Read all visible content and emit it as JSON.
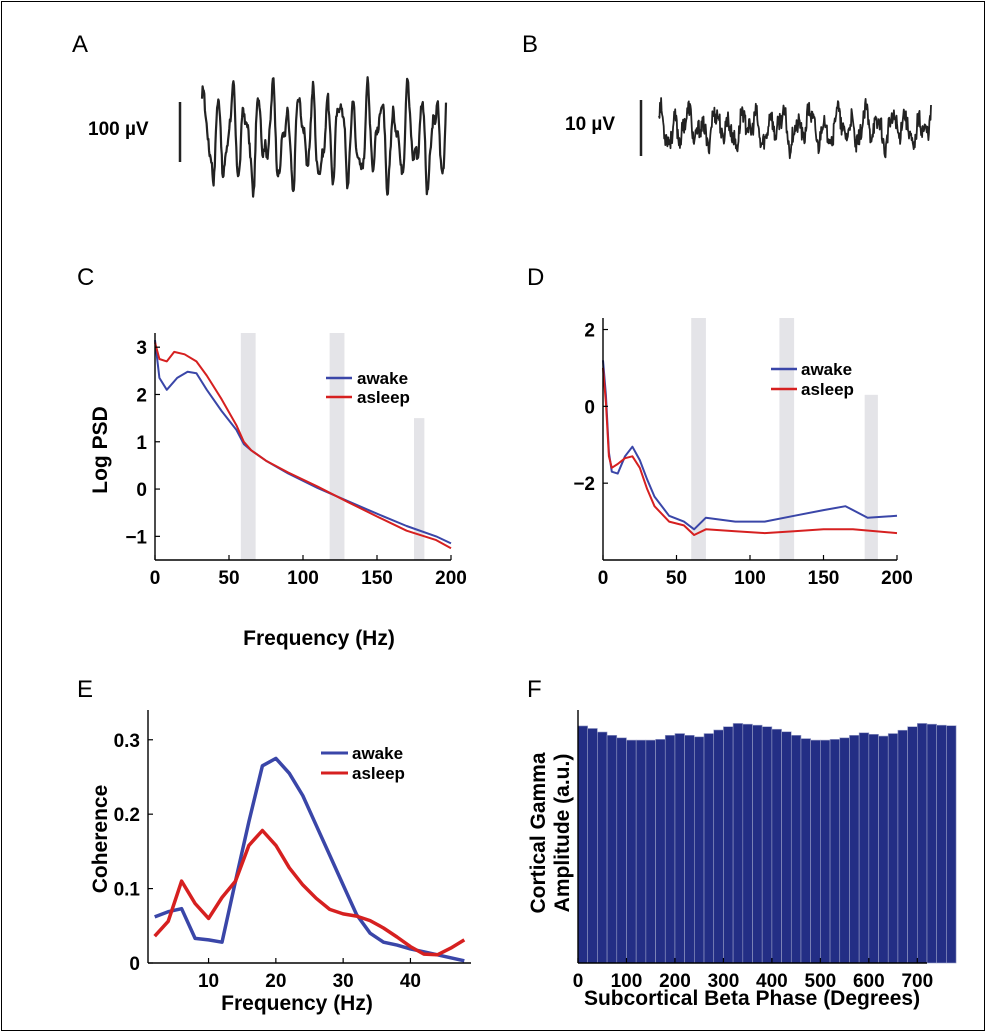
{
  "colors": {
    "awake": "#3a46a8",
    "asleep": "#d62020",
    "bar": "#232e85",
    "band": "#e4e4e8",
    "trace": "#222222"
  },
  "panels": {
    "A": {
      "letter": "A",
      "scale_label": "100 µV"
    },
    "B": {
      "letter": "B",
      "scale_label": "10 µV"
    },
    "C": {
      "letter": "C",
      "ylabel": "Log PSD",
      "xlabel": "Frequency (Hz)",
      "legend": [
        "awake",
        "asleep"
      ]
    },
    "D": {
      "letter": "D",
      "legend": [
        "awake",
        "asleep"
      ]
    },
    "E": {
      "letter": "E",
      "ylabel": "Coherence",
      "xlabel": "Frequency (Hz)",
      "legend": [
        "awake",
        "asleep"
      ]
    },
    "F": {
      "letter": "F",
      "ylabel_line1": "Cortical Gamma",
      "ylabel_line2": "Amplitude (a.u.)",
      "xlabel": "Subcortical Beta Phase (Degrees)"
    }
  },
  "chart_data": [
    {
      "id": "C",
      "type": "line",
      "xlim": [
        0,
        200
      ],
      "ylim": [
        -1.5,
        3.3
      ],
      "xticks": [
        0,
        50,
        100,
        150,
        200
      ],
      "yticks": [
        -1,
        0,
        1,
        2,
        3
      ],
      "ytick_labels": [
        "−1",
        "0",
        "1",
        "2",
        "3"
      ],
      "bands": [
        [
          58,
          68,
          3.3
        ],
        [
          118,
          128,
          3.3
        ],
        [
          175,
          182,
          1.5
        ]
      ],
      "series": [
        {
          "name": "awake",
          "x": [
            0,
            3,
            8,
            15,
            22,
            28,
            35,
            45,
            55,
            60,
            65,
            75,
            90,
            110,
            130,
            150,
            170,
            190,
            200
          ],
          "y": [
            3.15,
            2.35,
            2.1,
            2.35,
            2.48,
            2.45,
            2.1,
            1.65,
            1.25,
            0.95,
            0.82,
            0.6,
            0.33,
            0.02,
            -0.25,
            -0.52,
            -0.78,
            -1.0,
            -1.15
          ]
        },
        {
          "name": "asleep",
          "x": [
            0,
            3,
            8,
            13,
            20,
            28,
            35,
            45,
            55,
            60,
            65,
            75,
            90,
            110,
            130,
            150,
            170,
            190,
            200
          ],
          "y": [
            3.1,
            2.75,
            2.7,
            2.9,
            2.85,
            2.7,
            2.4,
            1.9,
            1.35,
            1.0,
            0.82,
            0.6,
            0.35,
            0.05,
            -0.27,
            -0.58,
            -0.88,
            -1.08,
            -1.25
          ]
        }
      ]
    },
    {
      "id": "D",
      "type": "line",
      "xlim": [
        0,
        200
      ],
      "ylim": [
        -4,
        2.3
      ],
      "xticks": [
        0,
        50,
        100,
        150,
        200
      ],
      "yticks": [
        -2,
        0,
        2
      ],
      "ytick_labels": [
        "−2",
        "0",
        "2"
      ],
      "bands": [
        [
          60,
          70,
          2.3
        ],
        [
          120,
          130,
          2.3
        ],
        [
          178,
          187,
          0.3
        ]
      ],
      "series": [
        {
          "name": "awake",
          "x": [
            0,
            2,
            4,
            6,
            10,
            15,
            20,
            25,
            30,
            35,
            45,
            55,
            62,
            70,
            90,
            110,
            130,
            150,
            165,
            180,
            200
          ],
          "y": [
            1.2,
            0.3,
            -1.2,
            -1.7,
            -1.75,
            -1.3,
            -1.05,
            -1.4,
            -1.9,
            -2.35,
            -2.85,
            -3.0,
            -3.2,
            -2.9,
            -3.0,
            -3.0,
            -2.85,
            -2.7,
            -2.6,
            -2.9,
            -2.85
          ]
        },
        {
          "name": "asleep",
          "x": [
            0,
            2,
            4,
            6,
            10,
            15,
            20,
            25,
            30,
            35,
            45,
            55,
            62,
            70,
            90,
            110,
            130,
            150,
            170,
            200
          ],
          "y": [
            1.0,
            0.1,
            -1.3,
            -1.6,
            -1.5,
            -1.35,
            -1.3,
            -1.6,
            -2.15,
            -2.6,
            -3.0,
            -3.1,
            -3.35,
            -3.2,
            -3.25,
            -3.3,
            -3.25,
            -3.2,
            -3.2,
            -3.3
          ]
        }
      ]
    },
    {
      "id": "E",
      "type": "line",
      "xlim": [
        1,
        49
      ],
      "ylim": [
        0,
        0.34
      ],
      "xticks": [
        10,
        20,
        30,
        40
      ],
      "yticks": [
        0,
        0.1,
        0.2,
        0.3
      ],
      "ytick_labels": [
        "0",
        "0.1",
        "0.2",
        "0.3"
      ],
      "series": [
        {
          "name": "awake",
          "x": [
            2,
            4,
            6,
            8,
            10,
            12,
            14,
            16,
            18,
            20,
            22,
            24,
            26,
            28,
            30,
            32,
            34,
            36,
            38,
            40,
            42,
            44,
            46,
            48
          ],
          "y": [
            0.062,
            0.069,
            0.073,
            0.033,
            0.031,
            0.028,
            0.11,
            0.19,
            0.265,
            0.275,
            0.255,
            0.225,
            0.185,
            0.145,
            0.105,
            0.065,
            0.04,
            0.028,
            0.024,
            0.019,
            0.015,
            0.011,
            0.007,
            0.003
          ]
        },
        {
          "name": "asleep",
          "x": [
            2,
            4,
            6,
            8,
            10,
            12,
            14,
            16,
            18,
            20,
            22,
            24,
            26,
            28,
            30,
            32,
            34,
            36,
            38,
            40,
            42,
            44,
            46,
            48
          ],
          "y": [
            0.036,
            0.056,
            0.11,
            0.08,
            0.06,
            0.088,
            0.11,
            0.158,
            0.178,
            0.158,
            0.128,
            0.105,
            0.087,
            0.072,
            0.066,
            0.063,
            0.057,
            0.047,
            0.035,
            0.022,
            0.012,
            0.011,
            0.02,
            0.031
          ]
        }
      ]
    },
    {
      "id": "F",
      "type": "bar",
      "xlim": [
        0,
        720
      ],
      "ylim": [
        0,
        1.0
      ],
      "xticks": [
        0,
        100,
        200,
        300,
        400,
        500,
        600,
        700
      ],
      "bin_width": 20,
      "values": [
        0.937,
        0.927,
        0.913,
        0.9,
        0.89,
        0.881,
        0.881,
        0.881,
        0.884,
        0.9,
        0.907,
        0.9,
        0.894,
        0.907,
        0.921,
        0.934,
        0.947,
        0.944,
        0.94,
        0.934,
        0.924,
        0.914,
        0.9,
        0.887,
        0.881,
        0.881,
        0.884,
        0.89,
        0.9,
        0.91,
        0.904,
        0.897,
        0.907,
        0.92,
        0.934,
        0.947,
        0.944,
        0.94,
        0.938
      ]
    }
  ]
}
